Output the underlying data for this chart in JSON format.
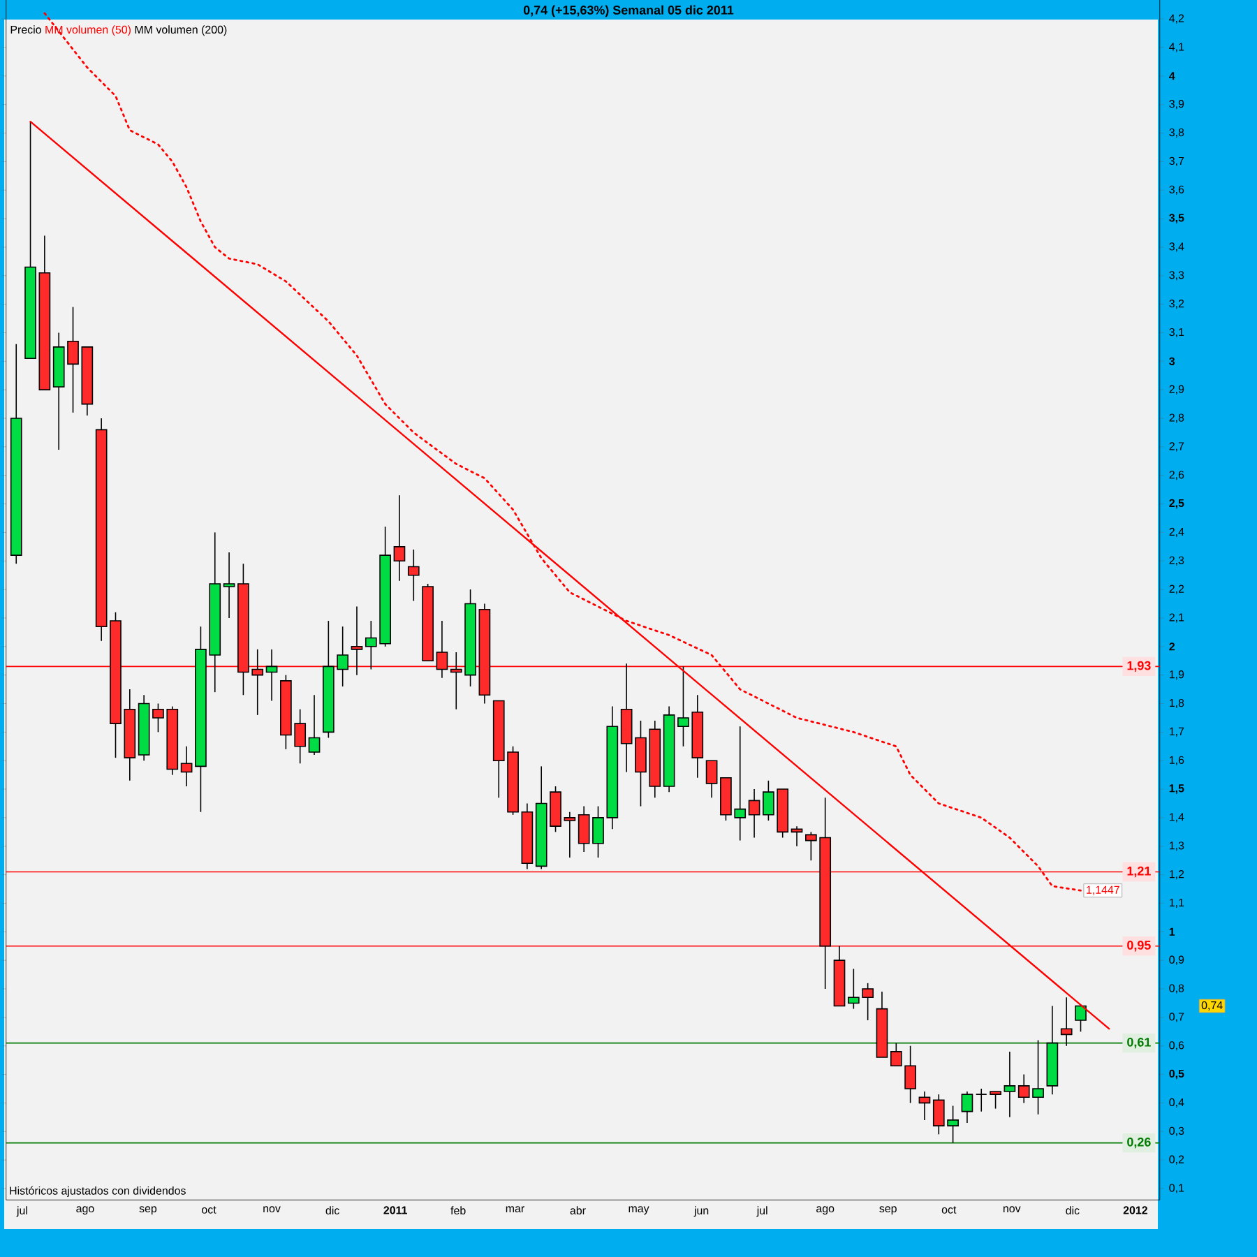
{
  "chart_data": {
    "type": "candlestick",
    "title": "0,74 (+15,63%)   Semanal  05 dic 2011",
    "annotations": [
      "MM volumen (200)",
      "Históricos ajustados con dividendos"
    ],
    "legend": "top left",
    "xlim": [
      "2010-06-23",
      "2012-01-13"
    ],
    "ylim": [
      0.06,
      4.3
    ],
    "xticks": [
      {
        "value": "2010-07-01",
        "label": "jul"
      },
      {
        "value": "2010-08-01",
        "label": "ago"
      },
      {
        "value": "2010-09-01",
        "label": "sep"
      },
      {
        "value": "2010-10-01",
        "label": "oct"
      },
      {
        "value": "2010-11-01",
        "label": "nov"
      },
      {
        "value": "2010-12-01",
        "label": "dic"
      },
      {
        "value": "2011-01-01",
        "label": "**2011**"
      },
      {
        "value": "2011-02-01",
        "label": "feb"
      },
      {
        "value": "2011-03-01",
        "label": "mar"
      },
      {
        "value": "2011-04-01",
        "label": "abr"
      },
      {
        "value": "2011-05-01",
        "label": "may"
      },
      {
        "value": "2011-06-01",
        "label": "jun"
      },
      {
        "value": "2011-07-01",
        "label": "jul"
      },
      {
        "value": "2011-08-01",
        "label": "ago"
      },
      {
        "value": "2011-09-01",
        "label": "sep"
      },
      {
        "value": "2011-10-01",
        "label": "oct"
      },
      {
        "value": "2011-11-01",
        "label": "nov"
      },
      {
        "value": "2011-12-01",
        "label": "dic"
      },
      {
        "value": "2012-01-01",
        "label": "**2012**"
      }
    ],
    "yticks": [
      {
        "value": 0.1,
        "label": "0,1"
      },
      {
        "value": 0.2,
        "label": "0,2"
      },
      {
        "value": 0.3,
        "label": "0,3"
      },
      {
        "value": 0.4,
        "label": "0,4"
      },
      {
        "value": 0.5,
        "label": "**0,5**"
      },
      {
        "value": 0.6,
        "label": "0,6"
      },
      {
        "value": 0.7,
        "label": "0,7"
      },
      {
        "value": 0.8,
        "label": "0,8"
      },
      {
        "value": 0.9,
        "label": "0,9"
      },
      {
        "value": 1,
        "label": "**1**"
      },
      {
        "value": 1.1,
        "label": "1,1"
      },
      {
        "value": 1.2,
        "label": "1,2"
      },
      {
        "value": 1.3,
        "label": "1,3"
      },
      {
        "value": 1.4,
        "label": "1,4"
      },
      {
        "value": 1.5,
        "label": "**1,5**"
      },
      {
        "value": 1.6,
        "label": "1,6"
      },
      {
        "value": 1.7,
        "label": "1,7"
      },
      {
        "value": 1.8,
        "label": "1,8"
      },
      {
        "value": 1.9,
        "label": "1,9"
      },
      {
        "value": 2,
        "label": "**2**"
      },
      {
        "value": 2.1,
        "label": "2,1"
      },
      {
        "value": 2.2,
        "label": "2,2"
      },
      {
        "value": 2.3,
        "label": "2,3"
      },
      {
        "value": 2.4,
        "label": "2,4"
      },
      {
        "value": 2.5,
        "label": "**2,5**"
      },
      {
        "value": 2.6,
        "label": "2,6"
      },
      {
        "value": 2.7,
        "label": "2,7"
      },
      {
        "value": 2.8,
        "label": "2,8"
      },
      {
        "value": 2.9,
        "label": "2,9"
      },
      {
        "value": 3,
        "label": "**3**"
      },
      {
        "value": 3.1,
        "label": "3,1"
      },
      {
        "value": 3.2,
        "label": "3,2"
      },
      {
        "value": 3.3,
        "label": "3,3"
      },
      {
        "value": 3.4,
        "label": "3,4"
      },
      {
        "value": 3.5,
        "label": "**3,5**"
      },
      {
        "value": 3.6,
        "label": "3,6"
      },
      {
        "value": 3.7,
        "label": "3,7"
      },
      {
        "value": 3.8,
        "label": "3,8"
      },
      {
        "value": 3.9,
        "label": "3,9"
      },
      {
        "value": 4,
        "label": "**4**"
      },
      {
        "value": 4.1,
        "label": "4,1"
      },
      {
        "value": 4.2,
        "label": "4,2"
      }
    ],
    "ref_lines": [
      {
        "axis": "y",
        "value": 1.93,
        "label": "1,93",
        "color": "#ff0000"
      },
      {
        "axis": "y",
        "value": 1.21,
        "label": "1,21",
        "color": "#ff0000"
      },
      {
        "axis": "y",
        "value": 0.95,
        "label": "0,95",
        "color": "#ff0000"
      },
      {
        "axis": "y",
        "value": 0.61,
        "label": "0,61",
        "color": "#007a00"
      },
      {
        "axis": "y",
        "value": 0.26,
        "label": "0,26",
        "color": "#007a00"
      }
    ],
    "series": [
      {
        "name": "Precio",
        "value_labels": [
          null,
          null,
          null,
          null,
          null,
          null,
          null,
          null,
          null,
          null,
          null,
          null,
          null,
          null,
          null,
          null,
          null,
          null,
          null,
          null,
          null,
          null,
          null,
          null,
          null,
          null,
          null,
          null,
          null,
          null,
          null,
          null,
          null,
          null,
          null,
          null,
          null,
          null,
          null,
          null,
          null,
          null,
          null,
          null,
          null,
          null,
          null,
          null,
          null,
          null,
          null,
          null,
          null,
          null,
          null,
          null,
          null,
          null,
          null,
          null,
          null,
          null,
          null,
          null,
          null,
          null,
          null,
          null,
          null,
          null,
          null,
          null,
          null,
          null,
          null,
          "0,74"
        ],
        "x": [
          "2010-06-28",
          "2010-07-05",
          "2010-07-12",
          "2010-07-19",
          "2010-07-26",
          "2010-08-02",
          "2010-08-09",
          "2010-08-16",
          "2010-08-23",
          "2010-08-30",
          "2010-09-06",
          "2010-09-13",
          "2010-09-20",
          "2010-09-27",
          "2010-10-04",
          "2010-10-11",
          "2010-10-18",
          "2010-10-25",
          "2010-11-01",
          "2010-11-08",
          "2010-11-15",
          "2010-11-22",
          "2010-11-29",
          "2010-12-06",
          "2010-12-13",
          "2010-12-20",
          "2010-12-27",
          "2011-01-03",
          "2011-01-10",
          "2011-01-17",
          "2011-01-24",
          "2011-01-31",
          "2011-02-07",
          "2011-02-14",
          "2011-02-21",
          "2011-02-28",
          "2011-03-07",
          "2011-03-14",
          "2011-03-21",
          "2011-03-28",
          "2011-04-04",
          "2011-04-11",
          "2011-04-18",
          "2011-04-25",
          "2011-05-02",
          "2011-05-09",
          "2011-05-16",
          "2011-05-23",
          "2011-05-30",
          "2011-06-06",
          "2011-06-13",
          "2011-06-20",
          "2011-06-27",
          "2011-07-04",
          "2011-07-11",
          "2011-07-18",
          "2011-07-25",
          "2011-08-01",
          "2011-08-08",
          "2011-08-15",
          "2011-08-22",
          "2011-08-29",
          "2011-09-05",
          "2011-09-12",
          "2011-09-19",
          "2011-09-26",
          "2011-10-03",
          "2011-10-10",
          "2011-10-17",
          "2011-10-24",
          "2011-10-31",
          "2011-11-07",
          "2011-11-14",
          "2011-11-21",
          "2011-11-28",
          "2011-12-05"
        ],
        "ohlc": [
          [
            2.32,
            3.06,
            2.29,
            2.8
          ],
          [
            3.01,
            3.84,
            3.01,
            3.33
          ],
          [
            3.31,
            3.44,
            2.9,
            2.9
          ],
          [
            2.91,
            3.1,
            2.69,
            3.05
          ],
          [
            3.07,
            3.19,
            2.82,
            2.99
          ],
          [
            3.05,
            3.05,
            2.81,
            2.85
          ],
          [
            2.76,
            2.8,
            2.02,
            2.07
          ],
          [
            2.09,
            2.12,
            1.61,
            1.73
          ],
          [
            1.78,
            1.85,
            1.53,
            1.61
          ],
          [
            1.62,
            1.83,
            1.6,
            1.8
          ],
          [
            1.78,
            1.8,
            1.7,
            1.75
          ],
          [
            1.78,
            1.79,
            1.55,
            1.57
          ],
          [
            1.59,
            1.65,
            1.51,
            1.56
          ],
          [
            1.58,
            2.07,
            1.42,
            1.99
          ],
          [
            1.97,
            2.4,
            1.84,
            2.22
          ],
          [
            2.21,
            2.33,
            2.1,
            2.22
          ],
          [
            2.22,
            2.29,
            1.83,
            1.91
          ],
          [
            1.92,
            1.99,
            1.76,
            1.9
          ],
          [
            1.91,
            1.99,
            1.81,
            1.93
          ],
          [
            1.88,
            1.9,
            1.64,
            1.69
          ],
          [
            1.73,
            1.78,
            1.59,
            1.65
          ],
          [
            1.63,
            1.83,
            1.62,
            1.68
          ],
          [
            1.7,
            2.09,
            1.68,
            1.93
          ],
          [
            1.92,
            2.07,
            1.86,
            1.97
          ],
          [
            2.0,
            2.14,
            1.9,
            1.99
          ],
          [
            2.0,
            2.09,
            1.92,
            2.03
          ],
          [
            2.01,
            2.42,
            2.0,
            2.32
          ],
          [
            2.35,
            2.53,
            2.23,
            2.3
          ],
          [
            2.28,
            2.34,
            2.16,
            2.25
          ],
          [
            2.21,
            2.22,
            1.95,
            1.95
          ],
          [
            1.98,
            2.09,
            1.89,
            1.92
          ],
          [
            1.92,
            1.98,
            1.78,
            1.91
          ],
          [
            1.9,
            2.2,
            1.86,
            2.15
          ],
          [
            2.13,
            2.15,
            1.8,
            1.83
          ],
          [
            1.81,
            1.81,
            1.47,
            1.6
          ],
          [
            1.63,
            1.65,
            1.41,
            1.42
          ],
          [
            1.42,
            1.45,
            1.22,
            1.24
          ],
          [
            1.23,
            1.58,
            1.22,
            1.45
          ],
          [
            1.49,
            1.51,
            1.35,
            1.37
          ],
          [
            1.4,
            1.42,
            1.26,
            1.39
          ],
          [
            1.41,
            1.44,
            1.28,
            1.31
          ],
          [
            1.31,
            1.44,
            1.26,
            1.4
          ],
          [
            1.4,
            1.79,
            1.36,
            1.72
          ],
          [
            1.78,
            1.94,
            1.56,
            1.66
          ],
          [
            1.68,
            1.74,
            1.44,
            1.56
          ],
          [
            1.71,
            1.74,
            1.47,
            1.51
          ],
          [
            1.51,
            1.79,
            1.49,
            1.76
          ],
          [
            1.72,
            1.93,
            1.65,
            1.75
          ],
          [
            1.77,
            1.83,
            1.54,
            1.61
          ],
          [
            1.6,
            1.6,
            1.47,
            1.52
          ],
          [
            1.54,
            1.54,
            1.39,
            1.41
          ],
          [
            1.4,
            1.72,
            1.32,
            1.43
          ],
          [
            1.46,
            1.5,
            1.33,
            1.41
          ],
          [
            1.41,
            1.53,
            1.39,
            1.49
          ],
          [
            1.5,
            1.5,
            1.33,
            1.35
          ],
          [
            1.36,
            1.37,
            1.3,
            1.35
          ],
          [
            1.34,
            1.35,
            1.25,
            1.32
          ],
          [
            1.33,
            1.47,
            0.8,
            0.95
          ],
          [
            0.9,
            0.95,
            0.74,
            0.74
          ],
          [
            0.75,
            0.87,
            0.73,
            0.77
          ],
          [
            0.8,
            0.82,
            0.69,
            0.77
          ],
          [
            0.73,
            0.79,
            0.56,
            0.56
          ],
          [
            0.58,
            0.61,
            0.53,
            0.53
          ],
          [
            0.53,
            0.6,
            0.4,
            0.45
          ],
          [
            0.42,
            0.44,
            0.34,
            0.4
          ],
          [
            0.41,
            0.43,
            0.29,
            0.32
          ],
          [
            0.32,
            0.39,
            0.26,
            0.34
          ],
          [
            0.37,
            0.44,
            0.33,
            0.43
          ],
          [
            0.43,
            0.45,
            0.37,
            0.43
          ],
          [
            0.44,
            0.44,
            0.38,
            0.43
          ],
          [
            0.44,
            0.58,
            0.35,
            0.46
          ],
          [
            0.46,
            0.5,
            0.4,
            0.42
          ],
          [
            0.42,
            0.62,
            0.36,
            0.45
          ],
          [
            0.46,
            0.74,
            0.43,
            0.61
          ],
          [
            0.66,
            0.77,
            0.6,
            0.64
          ],
          [
            0.69,
            0.74,
            0.65,
            0.74
          ]
        ]
      },
      {
        "type": "line",
        "name": "MM volumen (50)",
        "color": "#ff0000",
        "line_style": "dotted",
        "x": [
          "2010-07-12",
          "2010-08-02",
          "2010-08-16",
          "2010-08-23",
          "2010-09-06",
          "2010-09-13",
          "2010-09-20",
          "2010-09-27",
          "2010-10-04",
          "2010-10-11",
          "2010-10-25",
          "2010-11-08",
          "2010-11-29",
          "2010-12-13",
          "2010-12-27",
          "2011-01-10",
          "2011-01-31",
          "2011-02-14",
          "2011-02-28",
          "2011-03-14",
          "2011-03-28",
          "2011-04-11",
          "2011-04-25",
          "2011-05-16",
          "2011-06-06",
          "2011-06-20",
          "2011-07-18",
          "2011-08-15",
          "2011-09-05",
          "2011-09-12",
          "2011-09-26",
          "2011-10-17",
          "2011-10-31",
          "2011-11-14",
          "2011-11-21",
          "2011-12-05"
        ],
        "values": [
          4.22,
          4.03,
          3.93,
          3.81,
          3.76,
          3.7,
          3.61,
          3.49,
          3.4,
          3.36,
          3.34,
          3.28,
          3.14,
          3.02,
          2.85,
          2.75,
          2.64,
          2.59,
          2.48,
          2.31,
          2.19,
          2.14,
          2.09,
          2.04,
          1.97,
          1.85,
          1.75,
          1.7,
          1.65,
          1.55,
          1.45,
          1.4,
          1.33,
          1.23,
          1.16,
          1.1447
        ],
        "value_labels": [
          null,
          null,
          null,
          null,
          null,
          null,
          null,
          null,
          null,
          null,
          null,
          null,
          null,
          null,
          null,
          null,
          null,
          null,
          null,
          null,
          null,
          null,
          null,
          null,
          null,
          null,
          null,
          null,
          null,
          null,
          null,
          null,
          null,
          null,
          null,
          "1,1447"
        ]
      },
      {
        "type": "line",
        "color": "#ff0000",
        "line_style": "solid",
        "x": [
          "2010-07-05",
          "2011-12-19"
        ],
        "values": [
          3.84,
          0.66
        ]
      }
    ]
  }
}
